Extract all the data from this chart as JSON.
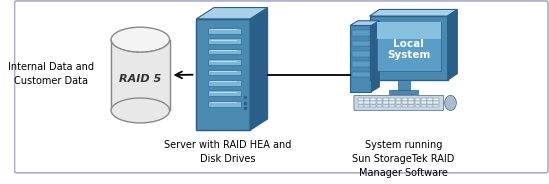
{
  "background_color": "#ffffff",
  "border_color": "#aaaacc",
  "server_label": "Server with RAID HEA and\nDisk Drives",
  "local_label": "System running\nSun StorageTek RAID\nManager Software",
  "data_label": "Internal Data and\nCustomer Data",
  "raid_label": "RAID 5",
  "local_system_label": "Local\nSystem",
  "line_color": "#000000",
  "arrow_color": "#000000",
  "text_color": "#000000",
  "server_blue_dark": "#2a5f8a",
  "server_blue_mid": "#4a8ab0",
  "server_blue_light": "#7ab8d8",
  "server_blue_top": "#a8d0e8",
  "monitor_dark": "#2a5f8a",
  "monitor_mid": "#4a8ab0",
  "monitor_screen": "#5a9ec8",
  "monitor_screen_light": "#88c0e0",
  "cylinder_face": "#e8e8e8",
  "cylinder_edge": "#888888"
}
